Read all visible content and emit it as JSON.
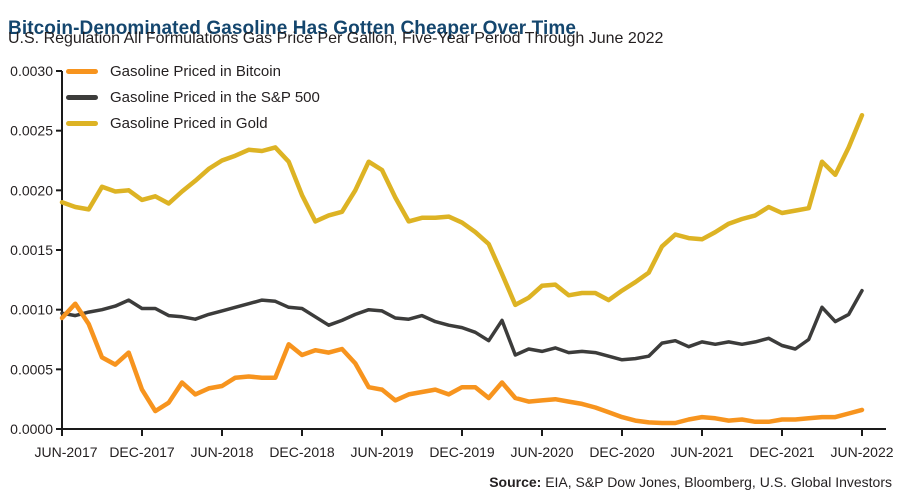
{
  "header": {
    "title": "Bitcoin-Denominated Gasoline Has Gotten Cheaper Over Time",
    "subtitle": "U.S. Regulation All Formulations Gas Price Per Gallon, Five-Year Period Through June 2022"
  },
  "source": {
    "label": "Source:",
    "text": " EIA, S&P Dow Jones, Bloomberg, U.S. Global Investors"
  },
  "colors": {
    "title": "#14466E",
    "text": "#231F20",
    "axis": "#1A1A1A",
    "bitcoin": "#F7941E",
    "sp500": "#3C3C3B",
    "gold": "#DDB324"
  },
  "chart_data": {
    "type": "line",
    "title": "Bitcoin-Denominated Gasoline Has Gotten Cheaper Over Time",
    "subtitle": "U.S. Regulation All Formulations Gas Price Per Gallon, Five-Year Period Through June 2022",
    "x_unit": "monthly samples, Jun-2017 through Jun-2022",
    "x_tick_labels": [
      "JUN-2017",
      "DEC-2017",
      "JUN-2018",
      "DEC-2018",
      "JUN-2019",
      "DEC-2019",
      "JUN-2020",
      "DEC-2020",
      "JUN-2021",
      "DEC-2021",
      "JUN-2022"
    ],
    "y_tick_labels": [
      "0.0000",
      "0.0005",
      "0.0010",
      "0.0015",
      "0.0020",
      "0.0025",
      "0.0030"
    ],
    "ylim": [
      0,
      0.003
    ],
    "grid": false,
    "legend_position": "top-left-inside",
    "series": [
      {
        "name": "Gasoline Priced in the S&P 500",
        "key": "sp500",
        "color_key": "sp500",
        "values": [
          0.00097,
          0.00095,
          0.00098,
          0.001,
          0.00103,
          0.00108,
          0.00101,
          0.00101,
          0.00095,
          0.00094,
          0.00092,
          0.00096,
          0.00099,
          0.00102,
          0.00105,
          0.00108,
          0.00107,
          0.00102,
          0.00101,
          0.00094,
          0.00087,
          0.00091,
          0.00096,
          0.001,
          0.00099,
          0.00093,
          0.00092,
          0.00095,
          0.0009,
          0.00087,
          0.00085,
          0.00081,
          0.00074,
          0.00091,
          0.00062,
          0.00067,
          0.00065,
          0.00068,
          0.00064,
          0.00065,
          0.00064,
          0.00061,
          0.00058,
          0.00059,
          0.00061,
          0.00072,
          0.00074,
          0.00069,
          0.00073,
          0.00071,
          0.00073,
          0.00071,
          0.00073,
          0.00076,
          0.0007,
          0.00067,
          0.00075,
          0.00102,
          0.0009,
          0.00096,
          0.00116
        ]
      },
      {
        "name": "Gasoline Priced in Gold",
        "key": "gold",
        "color_key": "gold",
        "values": [
          0.0019,
          0.00186,
          0.00184,
          0.00203,
          0.00199,
          0.002,
          0.00192,
          0.00195,
          0.00189,
          0.00199,
          0.00208,
          0.00218,
          0.00225,
          0.00229,
          0.00234,
          0.00233,
          0.00236,
          0.00224,
          0.00196,
          0.00174,
          0.00179,
          0.00182,
          0.002,
          0.00224,
          0.00217,
          0.00194,
          0.00174,
          0.00177,
          0.00177,
          0.00178,
          0.00173,
          0.00165,
          0.00155,
          0.0013,
          0.00104,
          0.0011,
          0.0012,
          0.00121,
          0.00112,
          0.00114,
          0.00114,
          0.00108,
          0.00116,
          0.00123,
          0.00131,
          0.00153,
          0.00163,
          0.0016,
          0.00159,
          0.00165,
          0.00172,
          0.00176,
          0.00179,
          0.00186,
          0.00181,
          0.00183,
          0.00185,
          0.00224,
          0.00213,
          0.00236,
          0.00263
        ]
      },
      {
        "name": "Gasoline Priced in Bitcoin",
        "key": "bitcoin",
        "color_key": "bitcoin",
        "values": [
          0.00093,
          0.00105,
          0.00088,
          0.0006,
          0.00054,
          0.00064,
          0.00033,
          0.00015,
          0.00022,
          0.00039,
          0.00029,
          0.00034,
          0.00036,
          0.00043,
          0.00044,
          0.00043,
          0.00043,
          0.00071,
          0.00062,
          0.00066,
          0.00064,
          0.00067,
          0.00055,
          0.00035,
          0.00033,
          0.00024,
          0.00029,
          0.00031,
          0.00033,
          0.00029,
          0.00035,
          0.00035,
          0.00026,
          0.00039,
          0.00026,
          0.00023,
          0.00024,
          0.00025,
          0.00023,
          0.00021,
          0.00018,
          0.00014,
          0.0001,
          7e-05,
          5.5e-05,
          5e-05,
          5e-05,
          8e-05,
          0.0001,
          9e-05,
          7e-05,
          8e-05,
          6e-05,
          6e-05,
          8e-05,
          8e-05,
          9e-05,
          0.0001,
          0.0001,
          0.00013,
          0.00016
        ]
      }
    ],
    "legend_order": [
      "bitcoin",
      "sp500",
      "gold"
    ]
  }
}
